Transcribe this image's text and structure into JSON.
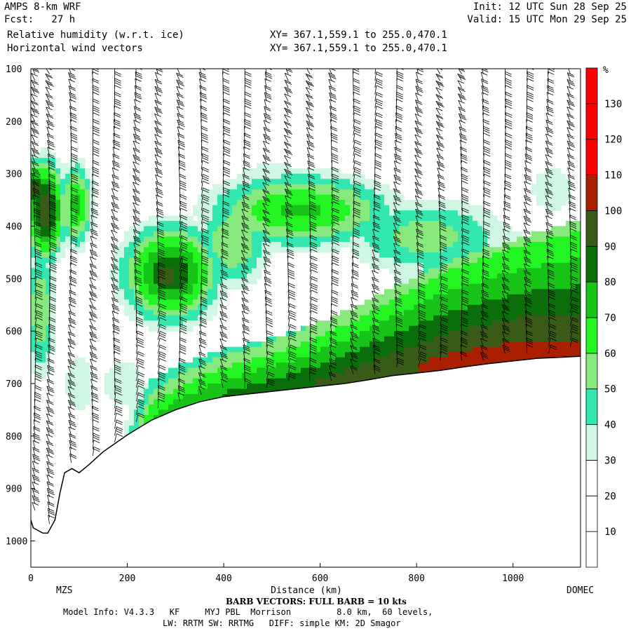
{
  "header": {
    "model": "AMPS 8-km WRF",
    "fcst": "Fcst:   27 h",
    "init": "Init: 12 UTC Sun 28 Sep 25",
    "valid": "Valid: 15 UTC Mon 29 Sep 25",
    "field1": "Relative humidity (w.r.t. ice)",
    "field1_xy": "XY= 367.1,559.1 to 255.0,470.1",
    "field2": "Horizontal wind vectors",
    "field2_xy": "XY= 367.1,559.1 to 255.0,470.1"
  },
  "footer": {
    "barb_note": "BARB VECTORS:  FULL BARB = 10 kts",
    "line1": "Model Info: V4.3.3   KF     MYJ PBL  Morrison         8.0 km,  60 levels,",
    "line2": "LW: RRTM SW: RRTMG   DIFF: simple KM: 2D Smagor"
  },
  "colors": {
    "bands": [
      "#ffffff",
      "#ffffff",
      "#ffffff",
      "#cff7e3",
      "#33e8b0",
      "#88ea7c",
      "#22f522",
      "#17c317",
      "#0a6f0a",
      "#385c18",
      "#aa1f00",
      "#ff0000"
    ],
    "terrain_fill": "#ffffff",
    "line": "#000000"
  },
  "chart_data": {
    "type": "heatmap",
    "title": "Relative humidity (w.r.t. ice)",
    "xlabel": "Distance (km)",
    "ylabel": "",
    "xlim": [
      0,
      1140
    ],
    "ylim": [
      1050,
      100
    ],
    "x_ticks": [
      "0",
      "200",
      "400",
      "600",
      "800",
      "1000"
    ],
    "x_tick_values": [
      0,
      200,
      400,
      600,
      800,
      1000
    ],
    "y_ticks": [
      "100",
      "200",
      "300",
      "400",
      "500",
      "600",
      "700",
      "800",
      "900",
      "1000"
    ],
    "y_tick_values": [
      100,
      200,
      300,
      400,
      500,
      600,
      700,
      800,
      900,
      1000
    ],
    "endpoints": {
      "left": "MZS",
      "right": "DOMEC"
    },
    "colorbar": {
      "unit": "%",
      "levels": [
        0,
        10,
        20,
        30,
        40,
        50,
        60,
        70,
        80,
        90,
        100,
        110,
        120,
        130,
        140
      ],
      "labels": [
        "10",
        "20",
        "30",
        "40",
        "50",
        "60",
        "70",
        "80",
        "90",
        "100",
        "110",
        "120",
        "130"
      ]
    },
    "terrain": {
      "x": [
        0,
        5,
        15,
        25,
        35,
        50,
        60,
        70,
        85,
        100,
        120,
        150,
        200,
        250,
        300,
        350,
        400,
        450,
        500,
        550,
        600,
        650,
        700,
        750,
        800,
        850,
        900,
        950,
        1000,
        1050,
        1100,
        1140
      ],
      "p": [
        960,
        975,
        980,
        985,
        985,
        960,
        910,
        870,
        862,
        870,
        855,
        830,
        798,
        770,
        750,
        735,
        725,
        720,
        715,
        710,
        705,
        700,
        693,
        685,
        680,
        675,
        668,
        662,
        657,
        652,
        650,
        648
      ]
    },
    "moist_regions": [
      {
        "x": 30,
        "p": 370,
        "rx": 60,
        "rp": 140,
        "rh": 97
      },
      {
        "x": 10,
        "p": 330,
        "rx": 30,
        "rp": 80,
        "rh": 96
      },
      {
        "x": 95,
        "p": 360,
        "rx": 50,
        "rp": 120,
        "rh": 75
      },
      {
        "x": 20,
        "p": 560,
        "rx": 50,
        "rp": 200,
        "rh": 60
      },
      {
        "x": 100,
        "p": 700,
        "rx": 60,
        "rp": 120,
        "rh": 40
      },
      {
        "x": 290,
        "p": 490,
        "rx": 150,
        "rp": 140,
        "rh": 88
      },
      {
        "x": 280,
        "p": 495,
        "rx": 85,
        "rp": 80,
        "rh": 96
      },
      {
        "x": 190,
        "p": 700,
        "rx": 90,
        "rp": 100,
        "rh": 40
      },
      {
        "x": 560,
        "p": 370,
        "rx": 300,
        "rp": 110,
        "rh": 72
      },
      {
        "x": 420,
        "p": 430,
        "rx": 120,
        "rp": 140,
        "rh": 60
      },
      {
        "x": 820,
        "p": 420,
        "rx": 280,
        "rp": 120,
        "rh": 55
      },
      {
        "x": 900,
        "p": 480,
        "rx": 300,
        "rp": 200,
        "rh": 45
      },
      {
        "x": 500,
        "p": 300,
        "rx": 200,
        "rp": 60,
        "rh": 35
      },
      {
        "x": 1080,
        "p": 330,
        "rx": 90,
        "rp": 90,
        "rh": 40
      }
    ],
    "surface_layer": [
      {
        "x": 250,
        "rh": 70,
        "depth": 80
      },
      {
        "x": 400,
        "rh": 80,
        "depth": 90
      },
      {
        "x": 550,
        "rh": 88,
        "depth": 110
      },
      {
        "x": 700,
        "rh": 96,
        "depth": 150
      },
      {
        "x": 850,
        "rh": 102,
        "depth": 200
      },
      {
        "x": 1000,
        "rh": 103,
        "depth": 230
      },
      {
        "x": 1140,
        "rh": 101,
        "depth": 260
      }
    ],
    "barb_columns_km": [
      0,
      30,
      75,
      120,
      165,
      210,
      255,
      300,
      345,
      390,
      435,
      480,
      525,
      570,
      615,
      660,
      705,
      750,
      795,
      840,
      885,
      930,
      975,
      1020,
      1065,
      1110
    ]
  }
}
